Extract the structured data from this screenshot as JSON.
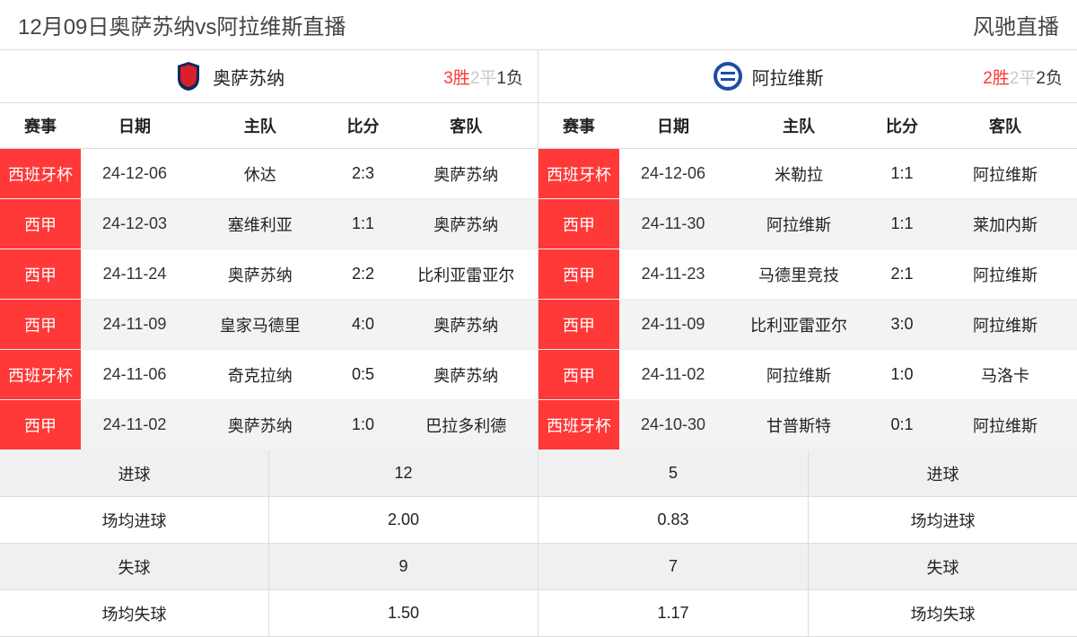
{
  "header": {
    "title": "12月09日奥萨苏纳vs阿拉维斯直播",
    "brand": "风驰直播"
  },
  "colors": {
    "accent_red": "#ff3838",
    "draw_gray": "#c9c9c9",
    "border": "#dddddd",
    "alt_row": "#f3f3f3"
  },
  "columns": {
    "competition": "赛事",
    "date": "日期",
    "home": "主队",
    "score": "比分",
    "away": "客队"
  },
  "left": {
    "team_name": "奥萨苏纳",
    "crest_bg": "#0a2a5c",
    "crest_inner": "#d91f2a",
    "record": {
      "win_n": "3",
      "win_t": "胜",
      "draw_n": "2",
      "draw_t": "平",
      "loss_n": "1",
      "loss_t": "负"
    },
    "rows": [
      {
        "comp": "西班牙杯",
        "date": "24-12-06",
        "home": "休达",
        "score": "2:3",
        "away": "奥萨苏纳"
      },
      {
        "comp": "西甲",
        "date": "24-12-03",
        "home": "塞维利亚",
        "score": "1:1",
        "away": "奥萨苏纳"
      },
      {
        "comp": "西甲",
        "date": "24-11-24",
        "home": "奥萨苏纳",
        "score": "2:2",
        "away": "比利亚雷亚尔"
      },
      {
        "comp": "西甲",
        "date": "24-11-09",
        "home": "皇家马德里",
        "score": "4:0",
        "away": "奥萨苏纳"
      },
      {
        "comp": "西班牙杯",
        "date": "24-11-06",
        "home": "奇克拉纳",
        "score": "0:5",
        "away": "奥萨苏纳"
      },
      {
        "comp": "西甲",
        "date": "24-11-02",
        "home": "奥萨苏纳",
        "score": "1:0",
        "away": "巴拉多利德"
      }
    ]
  },
  "right": {
    "team_name": "阿拉维斯",
    "crest_bg": "#1a4da8",
    "crest_inner": "#ffffff",
    "record": {
      "win_n": "2",
      "win_t": "胜",
      "draw_n": "2",
      "draw_t": "平",
      "loss_n": "2",
      "loss_t": "负"
    },
    "rows": [
      {
        "comp": "西班牙杯",
        "date": "24-12-06",
        "home": "米勒拉",
        "score": "1:1",
        "away": "阿拉维斯"
      },
      {
        "comp": "西甲",
        "date": "24-11-30",
        "home": "阿拉维斯",
        "score": "1:1",
        "away": "莱加内斯"
      },
      {
        "comp": "西甲",
        "date": "24-11-23",
        "home": "马德里竞技",
        "score": "2:1",
        "away": "阿拉维斯"
      },
      {
        "comp": "西甲",
        "date": "24-11-09",
        "home": "比利亚雷亚尔",
        "score": "3:0",
        "away": "阿拉维斯"
      },
      {
        "comp": "西甲",
        "date": "24-11-02",
        "home": "阿拉维斯",
        "score": "1:0",
        "away": "马洛卡"
      },
      {
        "comp": "西班牙杯",
        "date": "24-10-30",
        "home": "甘普斯特",
        "score": "0:1",
        "away": "阿拉维斯"
      }
    ]
  },
  "stats": {
    "labels": {
      "goals": "进球",
      "avg_goals": "场均进球",
      "conceded": "失球",
      "avg_conceded": "场均失球"
    },
    "left": {
      "goals": "12",
      "avg_goals": "2.00",
      "conceded": "9",
      "avg_conceded": "1.50"
    },
    "right": {
      "goals": "5",
      "avg_goals": "0.83",
      "conceded": "7",
      "avg_conceded": "1.17"
    }
  }
}
